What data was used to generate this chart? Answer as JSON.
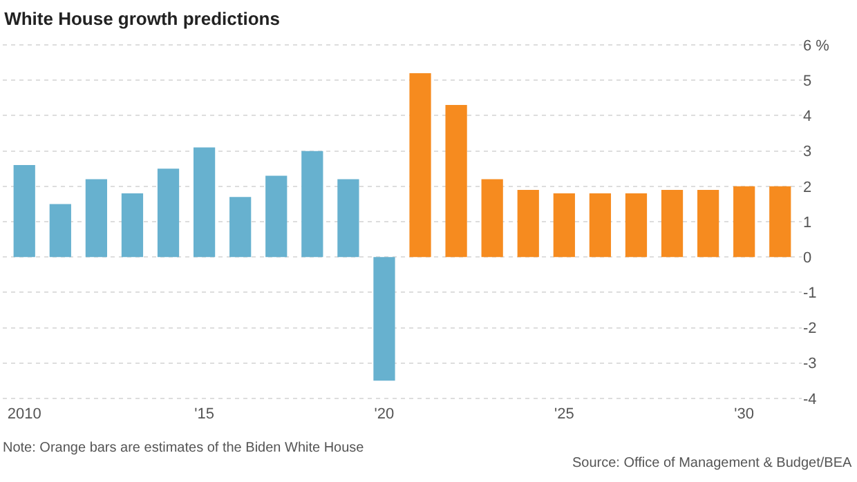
{
  "chart_data": {
    "type": "bar",
    "title": "White House growth predictions",
    "x": [
      2010,
      2011,
      2012,
      2013,
      2014,
      2015,
      2016,
      2017,
      2018,
      2019,
      2020,
      2021,
      2022,
      2023,
      2024,
      2025,
      2026,
      2027,
      2028,
      2029,
      2030,
      2031
    ],
    "values": [
      2.6,
      1.5,
      2.2,
      1.8,
      2.5,
      3.1,
      1.7,
      2.3,
      3.0,
      2.2,
      -3.5,
      5.2,
      4.3,
      2.2,
      1.9,
      1.8,
      1.8,
      1.8,
      1.9,
      1.9,
      2.0,
      2.0
    ],
    "colors": [
      "#67b1cf",
      "#67b1cf",
      "#67b1cf",
      "#67b1cf",
      "#67b1cf",
      "#67b1cf",
      "#67b1cf",
      "#67b1cf",
      "#67b1cf",
      "#67b1cf",
      "#67b1cf",
      "#f68b1f",
      "#f68b1f",
      "#f68b1f",
      "#f68b1f",
      "#f68b1f",
      "#f68b1f",
      "#f68b1f",
      "#f68b1f",
      "#f68b1f",
      "#f68b1f",
      "#f68b1f"
    ],
    "xlim": [
      2009.4,
      2031.6
    ],
    "xticks": [
      2010,
      {
        "value": 2015,
        "label": "'15"
      },
      {
        "value": 2020,
        "label": "'20"
      },
      {
        "value": 2025,
        "label": "'25"
      },
      {
        "value": 2030,
        "label": "'30"
      }
    ],
    "ylim": [
      -4.1,
      6.1
    ],
    "yticks": [
      -4,
      -3,
      -2,
      -1,
      0,
      1,
      2,
      3,
      4,
      5,
      {
        "value": 6,
        "label": "6 %"
      }
    ],
    "grid": "y",
    "legend": false,
    "annotations": [
      "Note: Orange bars are estimates of the Biden White House",
      "Source: Office of Management & Budget/BEA"
    ]
  }
}
